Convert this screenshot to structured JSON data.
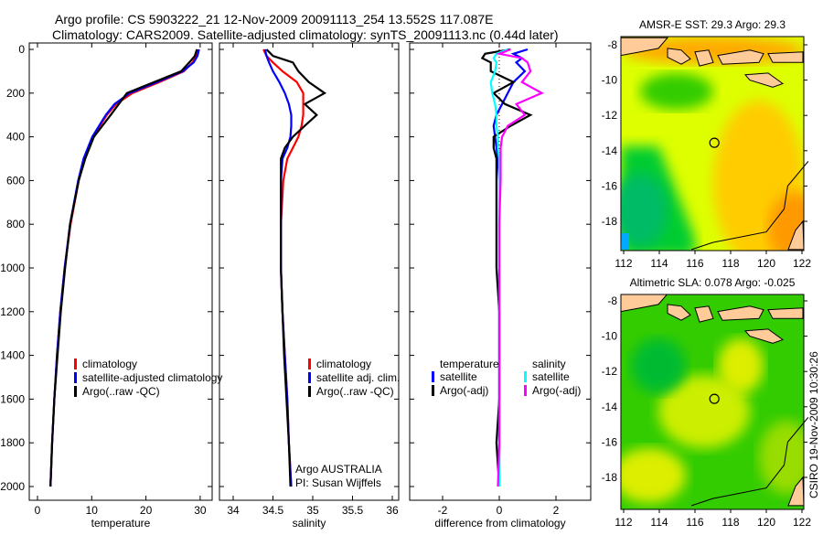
{
  "title_line1": "Argo profile: CS 5903222_21 12-Nov-2009 20091113_254 13.552S 117.087E",
  "title_line2": "Climatology: CARS2009. Satellite-adjusted climatology: synTS_20091113.nc (0.44d later)",
  "footer_stamp": "CSIRO 19-Nov-2009 10:30:26",
  "colors": {
    "climatology": "#ff0000",
    "satellite": "#0000ff",
    "argo": "#000000",
    "cyan": "#00ffff",
    "magenta": "#ff00ff",
    "land": "#ffcc99"
  },
  "chart_data": [
    {
      "type": "line",
      "xlabel": "temperature",
      "ylabel": "",
      "xlim": [
        -1.5,
        32
      ],
      "ylim": [
        2070,
        -30
      ],
      "xticks": [
        "0",
        "10",
        "20",
        "30"
      ],
      "yticks": [
        "0",
        "200",
        "400",
        "600",
        "800",
        "1000",
        "1200",
        "1400",
        "1600",
        "1800",
        "2000"
      ],
      "legend": [
        "climatology",
        "satellite-adjusted climatology",
        "Argo(..raw -QC)"
      ],
      "depth": [
        0,
        30,
        60,
        100,
        150,
        200,
        250,
        300,
        400,
        500,
        600,
        800,
        1000,
        1200,
        1400,
        1600,
        1800,
        2000
      ],
      "series": [
        {
          "name": "climatology",
          "values": [
            29.6,
            29.3,
            28.6,
            27.0,
            22.5,
            17.5,
            14.5,
            12.8,
            10.2,
            8.6,
            7.6,
            6.1,
            5.0,
            4.2,
            3.6,
            3.1,
            2.7,
            2.4
          ]
        },
        {
          "name": "satellite-adjusted climatology",
          "values": [
            29.8,
            29.5,
            28.8,
            26.8,
            22.0,
            17.0,
            14.2,
            12.6,
            10.1,
            8.5,
            7.5,
            6.0,
            5.0,
            4.2,
            3.6,
            3.1,
            2.7,
            2.4
          ]
        },
        {
          "name": "Argo(..raw -QC)",
          "values": [
            29.4,
            29.0,
            28.0,
            26.5,
            21.5,
            16.5,
            15.0,
            13.5,
            10.4,
            8.8,
            7.6,
            6.0,
            5.1,
            4.3,
            3.7,
            3.1,
            2.7,
            2.4
          ]
        }
      ]
    },
    {
      "type": "line",
      "xlabel": "salinity",
      "xlim": [
        33.8,
        36.15
      ],
      "ylim": [
        2070,
        -30
      ],
      "xticks": [
        "34",
        "34.5",
        "35",
        "35.5",
        "36"
      ],
      "legend": [
        "climatology",
        "satellite adj. clim.",
        "Argo(..raw -QC)"
      ],
      "annotation": [
        "Argo AUSTRALIA",
        "PI: Susan Wijffels"
      ],
      "depth": [
        0,
        30,
        60,
        100,
        150,
        200,
        250,
        300,
        350,
        400,
        450,
        500,
        600,
        800,
        1000,
        1200,
        1400,
        1600,
        1800,
        2000
      ],
      "series": [
        {
          "name": "climatology",
          "values": [
            34.38,
            34.42,
            34.5,
            34.62,
            34.8,
            34.88,
            34.88,
            34.88,
            34.86,
            34.82,
            34.75,
            34.68,
            34.63,
            34.6,
            34.6,
            34.62,
            34.65,
            34.68,
            34.7,
            34.73
          ]
        },
        {
          "name": "satellite adj. clim.",
          "values": [
            34.4,
            34.42,
            34.45,
            34.5,
            34.58,
            34.65,
            34.7,
            34.73,
            34.73,
            34.72,
            34.68,
            34.62,
            34.6,
            34.6,
            34.6,
            34.62,
            34.65,
            34.68,
            34.7,
            34.73
          ]
        },
        {
          "name": "Argo(..raw -QC)",
          "values": [
            34.42,
            34.5,
            34.75,
            34.82,
            34.95,
            35.15,
            34.9,
            35.05,
            34.9,
            34.75,
            34.65,
            34.6,
            34.6,
            34.6,
            34.6,
            34.62,
            34.64,
            34.67,
            34.7,
            34.72
          ]
        }
      ]
    },
    {
      "type": "line",
      "xlabel": "difference from climatology",
      "xlim": [
        -3.2,
        3.2
      ],
      "ylim": [
        2070,
        -30
      ],
      "xticks": [
        "-2",
        "0",
        "2"
      ],
      "legend_left_title": "temperature",
      "legend_right_title": "salinity",
      "legend": [
        "satellite",
        "Argo(-adj)",
        "satellite",
        "Argo(-adj)"
      ],
      "depth": [
        0,
        20,
        40,
        60,
        100,
        150,
        200,
        250,
        300,
        350,
        400,
        450,
        500,
        600,
        800,
        1000,
        1200,
        1400,
        1600,
        1800,
        2000
      ],
      "series": [
        {
          "name": "temperature satellite",
          "values": [
            1.0,
            0.5,
            0.8,
            0.6,
            0.9,
            0.5,
            0.3,
            0.1,
            -0.1,
            -0.2,
            -0.15,
            -0.1,
            -0.05,
            0,
            0,
            0,
            0,
            0,
            0,
            0,
            0
          ]
        },
        {
          "name": "temperature Argo(-adj)",
          "values": [
            0.4,
            -0.5,
            -0.6,
            -0.3,
            -0.3,
            0.5,
            -0.2,
            0.2,
            1.1,
            0.4,
            -0.2,
            -0.2,
            -0.1,
            -0.1,
            -0.1,
            -0.1,
            0,
            0,
            0,
            -0.1,
            0
          ]
        },
        {
          "name": "salinity satellite",
          "values": [
            0.3,
            -0.1,
            -0.2,
            -0.1,
            -0.15,
            -0.3,
            -0.25,
            -0.15,
            -0.1,
            -0.1,
            -0.05,
            -0.05,
            0,
            0,
            0,
            0,
            0,
            0,
            0,
            0,
            0
          ]
        },
        {
          "name": "salinity Argo(-adj)",
          "values": [
            0.4,
            0.0,
            0.8,
            1.0,
            1.1,
            0.8,
            1.5,
            0.6,
            0.9,
            0.3,
            0.1,
            0.05,
            0.05,
            0.05,
            0,
            0,
            0,
            0,
            0,
            0,
            -0.05
          ]
        }
      ]
    },
    {
      "type": "heatmap",
      "title": "AMSR-E SST: 29.3 Argo: 29.3",
      "xticks": [
        "112",
        "114",
        "116",
        "118",
        "120",
        "122"
      ],
      "yticks": [
        "-8",
        "-10",
        "-12",
        "-14",
        "-16",
        "-18"
      ],
      "xlim": [
        111.85,
        122.35
      ],
      "ylim": [
        -19.6,
        -7.6
      ],
      "float_position": {
        "lon": 117.087,
        "lat": -13.552
      }
    },
    {
      "type": "heatmap",
      "title": "Altimetric SLA: 0.078 Argo: -0.025",
      "xticks": [
        "112",
        "114",
        "116",
        "118",
        "120",
        "122"
      ],
      "yticks": [
        "-8",
        "-10",
        "-12",
        "-14",
        "-16",
        "-18"
      ],
      "xlim": [
        111.85,
        122.35
      ],
      "ylim": [
        -19.6,
        -7.6
      ],
      "float_position": {
        "lon": 117.087,
        "lat": -13.552
      }
    }
  ]
}
